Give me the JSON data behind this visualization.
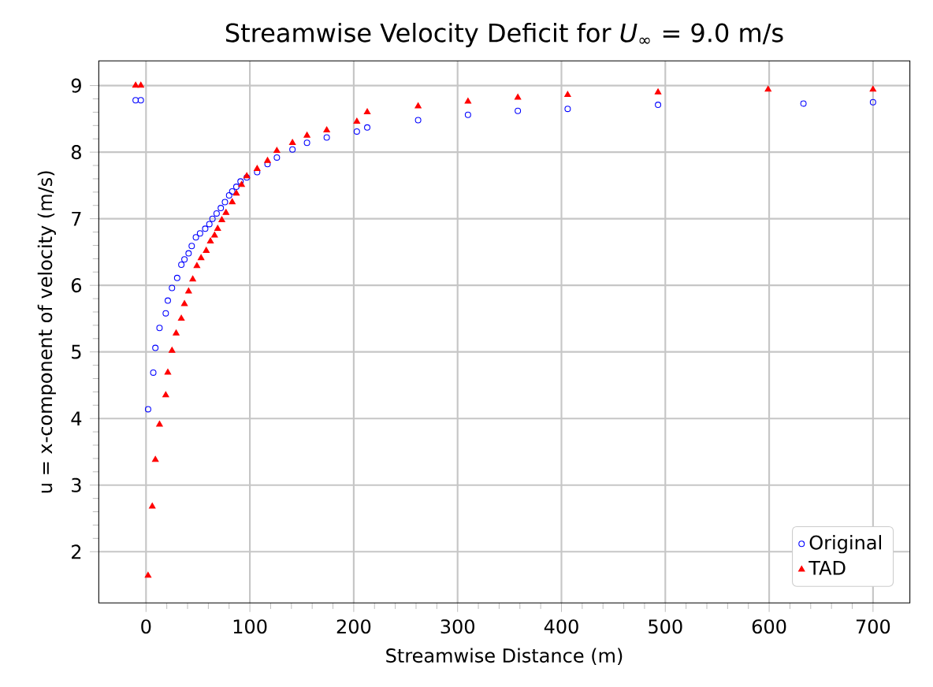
{
  "chart_data": {
    "type": "scatter",
    "title": "Streamwise Velocity Deficit for *U*$_{∞}$ = 9.0 m/s",
    "xlabel": "Streamwise Distance (m)",
    "ylabel": "u = x-component of velocity (m/s)",
    "xlim": [
      -45.5,
      735.5
    ],
    "ylim": [
      1.23,
      9.37
    ],
    "xticks": [
      0,
      100,
      200,
      300,
      400,
      500,
      600,
      700
    ],
    "yticks": [
      2,
      3,
      4,
      5,
      6,
      7,
      8,
      9
    ],
    "grid": true,
    "legend": "bottom right",
    "series": [
      {
        "name": "Original",
        "color": "#0000ff",
        "marker": "circle",
        "x": [
          -10,
          -5,
          2,
          7,
          9,
          13,
          19,
          21,
          25,
          30,
          34,
          37,
          41,
          44,
          48,
          52,
          57,
          61,
          64,
          68,
          72,
          76,
          80,
          83,
          87,
          91,
          97,
          107,
          117,
          126,
          141,
          155,
          174,
          203,
          213,
          262,
          310,
          358,
          406,
          493,
          633,
          700
        ],
        "values": [
          8.78,
          8.78,
          4.14,
          4.69,
          5.06,
          5.36,
          5.58,
          5.77,
          5.96,
          6.11,
          6.31,
          6.39,
          6.48,
          6.59,
          6.72,
          6.78,
          6.85,
          6.92,
          7.0,
          7.08,
          7.16,
          7.25,
          7.35,
          7.41,
          7.48,
          7.56,
          7.62,
          7.7,
          7.82,
          7.92,
          8.04,
          8.14,
          8.22,
          8.31,
          8.37,
          8.48,
          8.56,
          8.62,
          8.65,
          8.71,
          8.73,
          8.75
        ]
      },
      {
        "name": "TAD",
        "color": "#ff0000",
        "marker": "triangle",
        "x": [
          -10,
          -5,
          2,
          6,
          9,
          13,
          19,
          21,
          25,
          29,
          34,
          37,
          41,
          45,
          49,
          53,
          58,
          62,
          66,
          69,
          73,
          77,
          83,
          87,
          92,
          97,
          107,
          117,
          126,
          141,
          155,
          174,
          203,
          213,
          262,
          310,
          358,
          406,
          493,
          599,
          700
        ],
        "values": [
          9.0,
          9.0,
          1.64,
          2.68,
          3.38,
          3.91,
          4.35,
          4.69,
          5.02,
          5.28,
          5.5,
          5.72,
          5.91,
          6.09,
          6.29,
          6.41,
          6.52,
          6.66,
          6.75,
          6.85,
          6.98,
          7.09,
          7.25,
          7.38,
          7.51,
          7.64,
          7.75,
          7.87,
          8.02,
          8.14,
          8.25,
          8.33,
          8.46,
          8.6,
          8.69,
          8.76,
          8.82,
          8.86,
          8.9,
          8.94,
          8.94
        ]
      }
    ]
  }
}
